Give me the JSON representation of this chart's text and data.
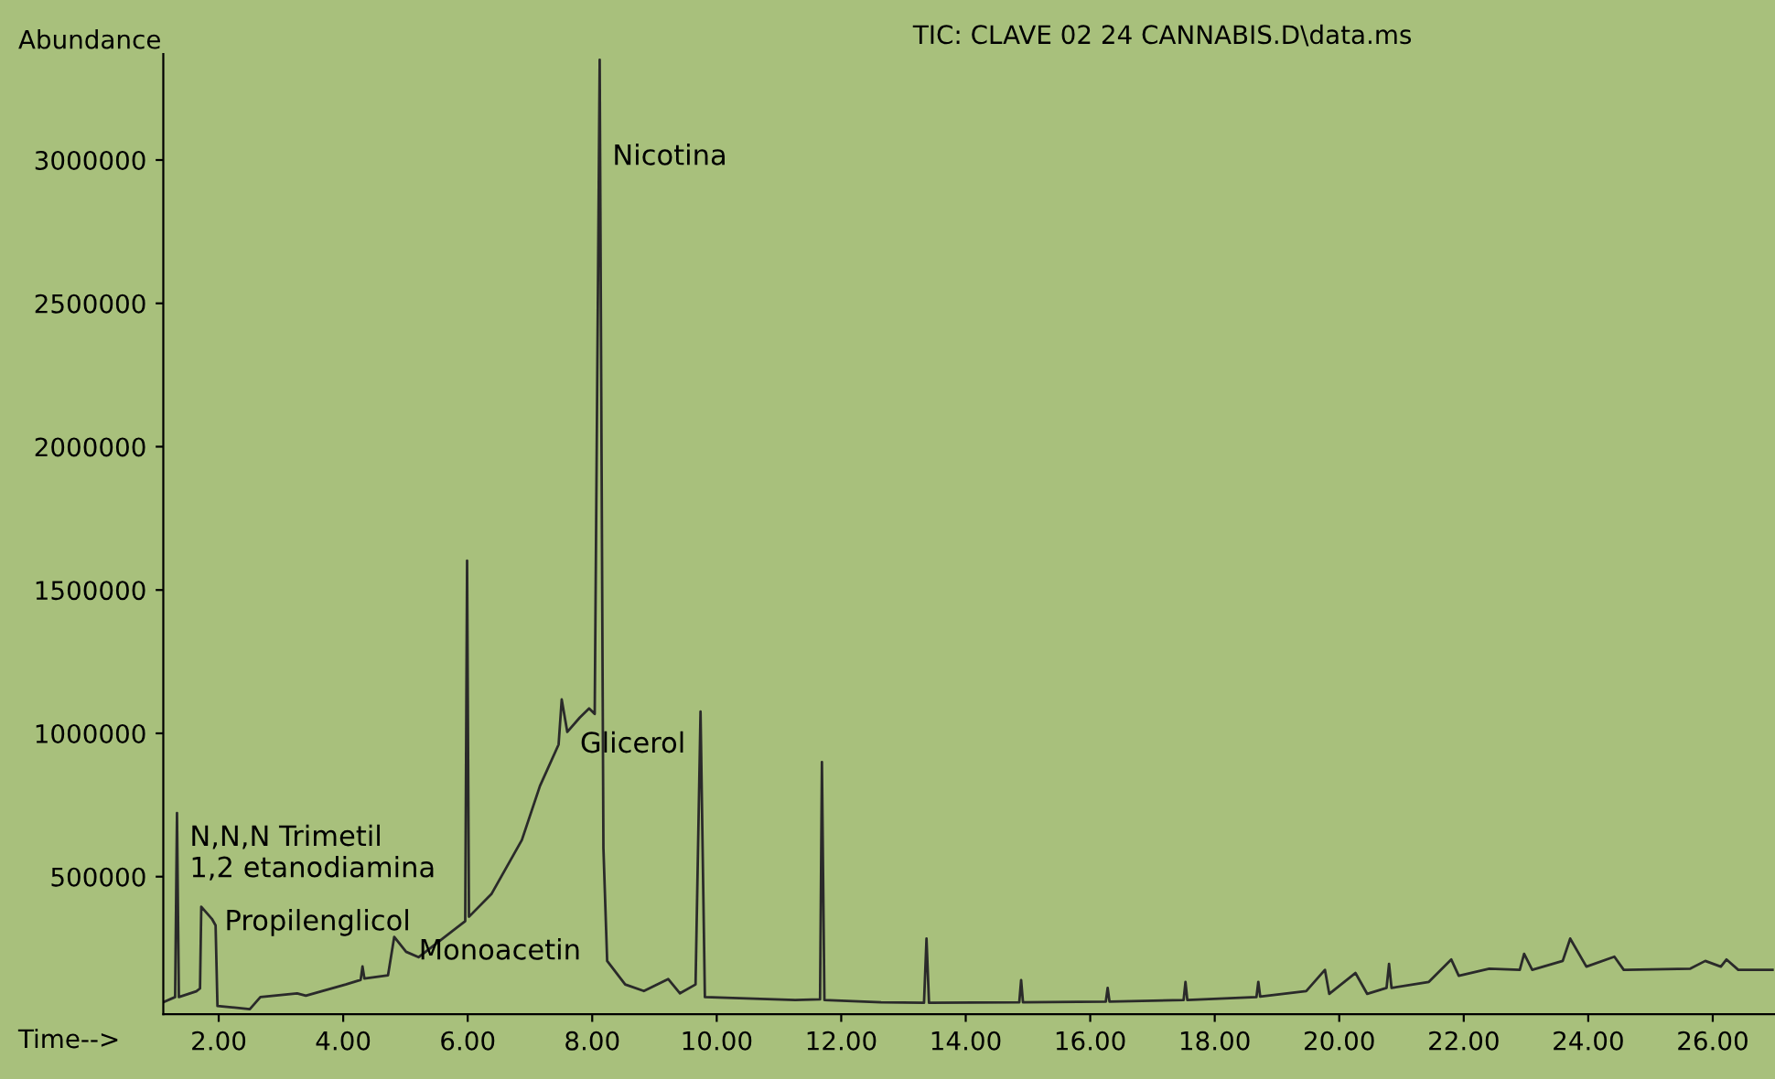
{
  "chart_data": {
    "type": "line",
    "title": "TIC: CLAVE 02 24 CANNABIS.D\\data.ms",
    "xlabel": "Time-->",
    "ylabel": "Abundance",
    "xlim": [
      1.11,
      27.0
    ],
    "ylim": [
      20000,
      3370000
    ],
    "xticks": [
      {
        "value": 2,
        "label": "2.00"
      },
      {
        "value": 4,
        "label": "4.00"
      },
      {
        "value": 6,
        "label": "6.00"
      },
      {
        "value": 8,
        "label": "8.00"
      },
      {
        "value": 10,
        "label": "10.00"
      },
      {
        "value": 12,
        "label": "12.00"
      },
      {
        "value": 14,
        "label": "14.00"
      },
      {
        "value": 16,
        "label": "16.00"
      },
      {
        "value": 18,
        "label": "18.00"
      },
      {
        "value": 20,
        "label": "20.00"
      },
      {
        "value": 22,
        "label": "22.00"
      },
      {
        "value": 24,
        "label": "24.00"
      },
      {
        "value": 26,
        "label": "26.00"
      }
    ],
    "yticks": [
      500000,
      1000000,
      1500000,
      2000000,
      2500000,
      3000000
    ],
    "grid": false,
    "legend": false,
    "marker": "none",
    "line_style": "solid",
    "series": [
      {
        "color": "#2a2a2a",
        "x": [
          1.11,
          1.3,
          1.33,
          1.36,
          1.64,
          1.7,
          1.72,
          1.89,
          1.95,
          1.98,
          2.5,
          2.67,
          3.26,
          3.4,
          4.04,
          4.28,
          4.31,
          4.34,
          4.72,
          4.82,
          5.01,
          5.21,
          5.96,
          5.99,
          6.02,
          6.38,
          6.87,
          7.16,
          7.46,
          7.51,
          7.6,
          7.8,
          7.95,
          8.04,
          8.12,
          8.18,
          8.24,
          8.53,
          8.83,
          9.22,
          9.41,
          9.66,
          9.74,
          9.81,
          11.26,
          11.66,
          11.69,
          11.73,
          12.64,
          13.33,
          13.37,
          13.41,
          14.86,
          14.89,
          14.92,
          16.25,
          16.28,
          16.31,
          17.5,
          17.53,
          17.56,
          18.67,
          18.7,
          18.73,
          19.47,
          19.77,
          19.84,
          20.26,
          20.45,
          20.76,
          20.8,
          20.84,
          21.44,
          21.8,
          21.92,
          22.41,
          22.9,
          22.97,
          23.1,
          23.59,
          23.71,
          23.97,
          24.42,
          24.57,
          25.64,
          25.88,
          26.13,
          26.22,
          26.41,
          26.96
        ],
        "values": [
          62000,
          80000,
          722000,
          80000,
          100000,
          110000,
          395000,
          353000,
          330000,
          49000,
          38000,
          80000,
          93000,
          85000,
          124000,
          140000,
          187000,
          145000,
          156000,
          290000,
          238000,
          219000,
          345000,
          1602000,
          360000,
          439000,
          628000,
          816000,
          961000,
          1118000,
          1005000,
          1055000,
          1087000,
          1068000,
          3350000,
          600000,
          206000,
          124000,
          101000,
          143000,
          93000,
          124000,
          1076000,
          80000,
          70000,
          72000,
          900000,
          70000,
          62000,
          60000,
          284000,
          60000,
          62000,
          139000,
          62000,
          64000,
          112000,
          64000,
          70000,
          133000,
          70000,
          80000,
          133000,
          82000,
          101000,
          175000,
          91000,
          164000,
          91000,
          112000,
          196000,
          112000,
          133000,
          211000,
          154000,
          179000,
          175000,
          231000,
          175000,
          206000,
          284000,
          186000,
          221000,
          175000,
          179000,
          206000,
          186000,
          211000,
          175000,
          175000
        ]
      }
    ],
    "annotations": [
      {
        "text": "N,N,N Trimetil\n1,2 etanodiamina",
        "x": 1.33,
        "y": 580000
      },
      {
        "text": "Propilenglicol",
        "x": 1.89,
        "y": 340000
      },
      {
        "text": "Monoacetin",
        "x": 5.01,
        "y": 238000
      },
      {
        "text": "Glicerol",
        "x": 7.6,
        "y": 960000
      },
      {
        "text": "Nicotina",
        "x": 8.12,
        "y": 3010000
      }
    ]
  }
}
